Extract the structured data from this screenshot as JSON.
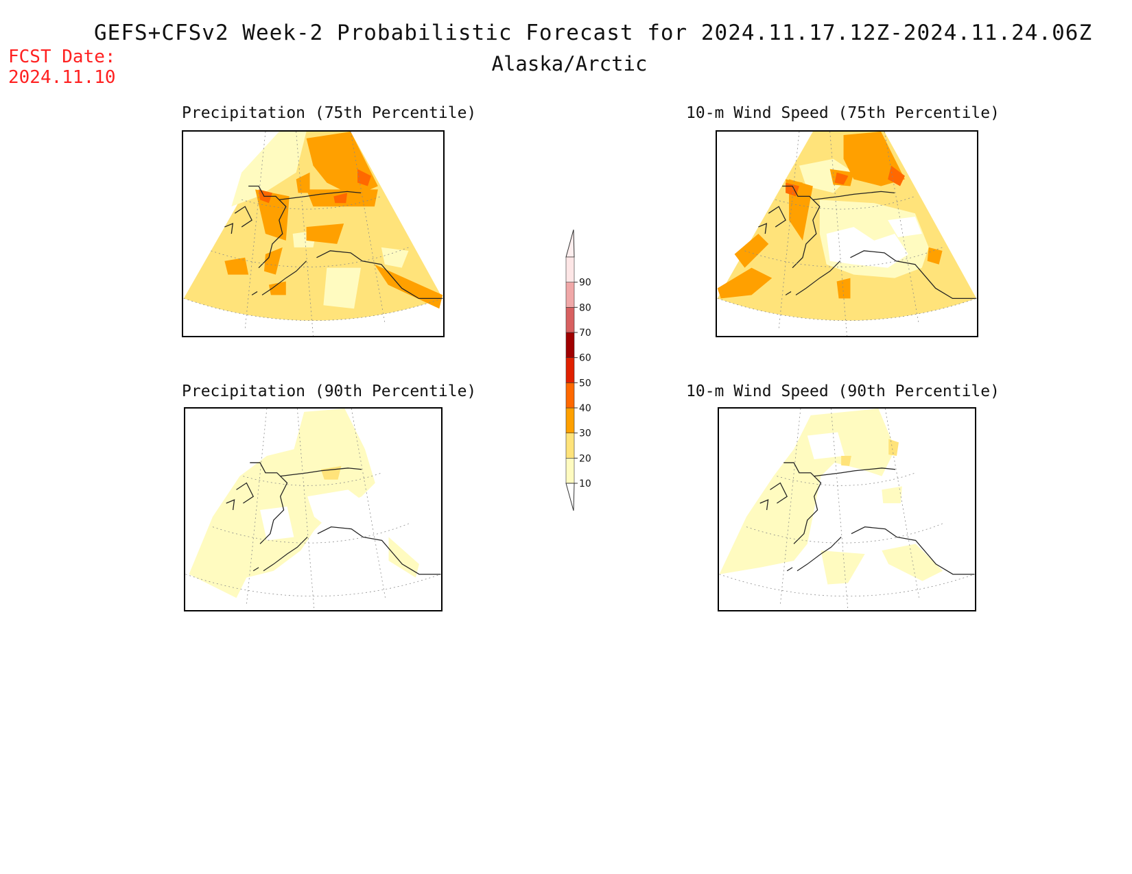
{
  "header": {
    "title": "GEFS+CFSv2 Week-2 Probabilistic Forecast for 2024.11.17.12Z-2024.11.24.06Z",
    "region": "Alaska/Arctic",
    "fcst_label": "FCST Date:",
    "fcst_date": "2024.11.10"
  },
  "panels": [
    {
      "id": "precip75",
      "title": "Precipitation (75th Percentile)"
    },
    {
      "id": "wind75",
      "title": "10-m Wind Speed (75th Percentile)"
    },
    {
      "id": "precip90",
      "title": "Precipitation (90th Percentile)"
    },
    {
      "id": "wind90",
      "title": "10-m Wind Speed (90th Percentile)"
    }
  ],
  "colorbar": {
    "levels": [
      "10",
      "20",
      "30",
      "40",
      "50",
      "60",
      "70",
      "80",
      "90"
    ],
    "colors": [
      "#fffbc0",
      "#ffe37a",
      "#ffa000",
      "#ff6800",
      "#e02000",
      "#a00000",
      "#d86060",
      "#f0a8a8",
      "#fde6e6"
    ],
    "below_color": "#ffffff"
  }
}
